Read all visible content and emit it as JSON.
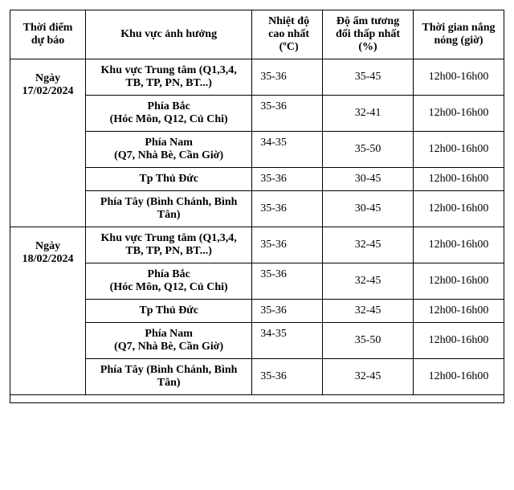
{
  "columns": {
    "date": "Thời điểm dự báo",
    "area": "Khu vực ảnh hưởng",
    "temp": "Nhiệt độ cao nhất (ºC)",
    "hum": "Độ ẩm tương đối thấp nhất (%)",
    "time": "Thời gian nắng nóng (giờ)"
  },
  "groups": [
    {
      "date_line1": "Ngày",
      "date_line2": "17/02/2024",
      "rows": [
        {
          "area": "Khu vực Trung tâm (Q1,3,4, TB, TP, PN, BT...)",
          "temp": "35-36",
          "hum": "35-45",
          "time": "12h00-16h00",
          "temp_valign": "middle"
        },
        {
          "area": "Phía Bắc\n(Hóc Môn, Q12, Củ Chi)",
          "temp": "35-36",
          "hum": "32-41",
          "time": "12h00-16h00",
          "temp_valign": "top"
        },
        {
          "area": "Phía Nam\n(Q7, Nhà Bè, Cần Giờ)",
          "temp": "34-35",
          "hum": "35-50",
          "time": "12h00-16h00",
          "temp_valign": "top"
        },
        {
          "area": "Tp Thủ Đức",
          "temp": "35-36",
          "hum": "30-45",
          "time": "12h00-16h00",
          "temp_valign": "middle"
        },
        {
          "area": "Phía Tây (Bình Chánh, Bình Tân)",
          "temp": "35-36",
          "hum": "30-45",
          "time": "12h00-16h00",
          "temp_valign": "middle"
        }
      ]
    },
    {
      "date_line1": "Ngày",
      "date_line2": "18/02/2024",
      "rows": [
        {
          "area": "Khu vực Trung tâm (Q1,3,4, TB, TP, PN, BT...)",
          "temp": "35-36",
          "hum": "32-45",
          "time": "12h00-16h00",
          "temp_valign": "middle"
        },
        {
          "area": "Phía Bắc\n(Hóc Môn, Q12, Củ Chi)",
          "temp": "35-36",
          "hum": "32-45",
          "time": "12h00-16h00",
          "temp_valign": "top"
        },
        {
          "area": "Tp Thủ Đức",
          "temp": "35-36",
          "hum": "32-45",
          "time": "12h00-16h00",
          "temp_valign": "middle"
        },
        {
          "area": "Phía Nam\n(Q7, Nhà Bè, Cần Giờ)",
          "temp": "34-35",
          "hum": "35-50",
          "time": "12h00-16h00",
          "temp_valign": "top"
        },
        {
          "area": "Phía Tây (Bình Chánh, Bình Tân)",
          "temp": "35-36",
          "hum": "32-45",
          "time": "12h00-16h00",
          "temp_valign": "middle"
        }
      ]
    }
  ]
}
